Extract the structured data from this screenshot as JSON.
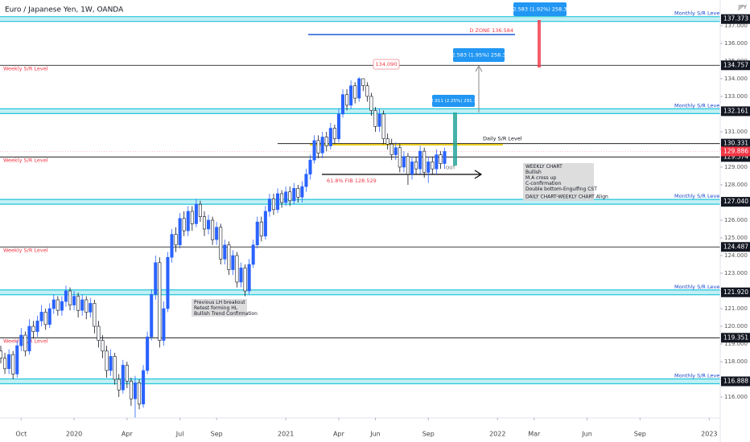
{
  "chart_data": {
    "type": "candlestick",
    "title": "Euro / Japanese Yen, 1W, OANDA",
    "currency": "JPY",
    "up_color": "#2962ff",
    "down_color": "#ffffff",
    "x": [
      -18,
      -17,
      -16,
      -15,
      -14,
      -13,
      -12,
      -11,
      -10,
      -9,
      -8,
      -7,
      -6,
      -5,
      -4,
      -3,
      -2,
      -1,
      0,
      1,
      2,
      3,
      4,
      5,
      6,
      7,
      8,
      9,
      10,
      11,
      12,
      13,
      14,
      15,
      16,
      17,
      18,
      19,
      20,
      21,
      22,
      23,
      24,
      25,
      26,
      27,
      28,
      29,
      30,
      31,
      32,
      33,
      34,
      35,
      36,
      37,
      38,
      39,
      40,
      41,
      42,
      43,
      44,
      45,
      46,
      47,
      48,
      49,
      50,
      51,
      52,
      53,
      54,
      55,
      56,
      57,
      58,
      59,
      60,
      61,
      62,
      63,
      64,
      65,
      66,
      67,
      68,
      69,
      70,
      71,
      72,
      73,
      74,
      75,
      76,
      77,
      78,
      79,
      80,
      81,
      82,
      83,
      84,
      85,
      86,
      87,
      88,
      89,
      90,
      91
    ],
    "candles": [
      [
        118.6,
        118.9,
        117.9,
        118.2
      ],
      [
        118.2,
        118.5,
        117.3,
        117.6
      ],
      [
        117.6,
        118.7,
        117.3,
        118.4
      ],
      [
        118.4,
        118.6,
        117.0,
        117.3
      ],
      [
        117.3,
        119.2,
        117.1,
        118.9
      ],
      [
        118.9,
        119.9,
        118.6,
        119.5
      ],
      [
        119.5,
        119.7,
        118.3,
        118.6
      ],
      [
        118.6,
        120.4,
        118.4,
        120.0
      ],
      [
        120.0,
        120.3,
        119.3,
        119.7
      ],
      [
        119.7,
        120.6,
        119.4,
        120.3
      ],
      [
        120.3,
        121.2,
        120.0,
        120.8
      ],
      [
        120.8,
        121.0,
        119.8,
        120.1
      ],
      [
        120.1,
        121.3,
        119.9,
        121.0
      ],
      [
        121.0,
        121.8,
        120.7,
        121.5
      ],
      [
        121.5,
        121.7,
        120.6,
        120.9
      ],
      [
        120.9,
        121.7,
        120.6,
        121.4
      ],
      [
        121.4,
        122.3,
        121.1,
        122.0
      ],
      [
        122.0,
        122.2,
        120.9,
        121.2
      ],
      [
        121.2,
        122.0,
        120.9,
        121.7
      ],
      [
        121.7,
        121.9,
        120.5,
        120.9
      ],
      [
        120.9,
        121.8,
        120.6,
        121.5
      ],
      [
        121.5,
        121.7,
        120.4,
        120.8
      ],
      [
        120.8,
        121.6,
        120.5,
        121.3
      ],
      [
        121.3,
        121.5,
        119.6,
        120.0
      ],
      [
        120.0,
        120.3,
        118.8,
        119.2
      ],
      [
        119.2,
        119.5,
        118.2,
        118.6
      ],
      [
        118.6,
        118.9,
        117.1,
        117.5
      ],
      [
        117.5,
        118.7,
        117.2,
        118.3
      ],
      [
        118.3,
        118.5,
        116.7,
        117.0
      ],
      [
        117.0,
        117.3,
        116.0,
        116.4
      ],
      [
        116.4,
        118.1,
        116.2,
        117.8
      ],
      [
        117.8,
        118.0,
        116.5,
        116.9
      ],
      [
        116.9,
        117.1,
        115.5,
        115.9
      ],
      [
        115.9,
        117.2,
        114.6,
        116.8
      ],
      [
        116.8,
        117.0,
        115.3,
        115.6
      ],
      [
        115.6,
        117.8,
        115.4,
        117.5
      ],
      [
        117.5,
        119.7,
        117.3,
        119.4
      ],
      [
        119.4,
        122.1,
        119.2,
        121.8
      ],
      [
        121.8,
        124.0,
        121.5,
        123.6
      ],
      [
        123.6,
        123.9,
        118.8,
        119.2
      ],
      [
        119.2,
        121.4,
        118.9,
        121.0
      ],
      [
        121.0,
        124.2,
        120.8,
        123.9
      ],
      [
        123.9,
        125.5,
        123.6,
        125.2
      ],
      [
        125.2,
        125.6,
        124.2,
        124.6
      ],
      [
        124.6,
        126.4,
        124.4,
        126.1
      ],
      [
        126.1,
        126.5,
        125.1,
        125.4
      ],
      [
        125.4,
        126.8,
        125.1,
        126.5
      ],
      [
        126.5,
        126.8,
        125.4,
        125.8
      ],
      [
        125.8,
        127.2,
        125.6,
        126.9
      ],
      [
        126.9,
        127.1,
        125.9,
        126.2
      ],
      [
        126.2,
        126.5,
        125.1,
        125.5
      ],
      [
        125.5,
        126.3,
        125.2,
        126.0
      ],
      [
        126.0,
        126.2,
        124.6,
        124.9
      ],
      [
        124.9,
        125.9,
        124.6,
        125.6
      ],
      [
        125.6,
        125.8,
        123.5,
        123.8
      ],
      [
        123.8,
        124.9,
        123.5,
        124.6
      ],
      [
        124.6,
        124.8,
        122.9,
        123.2
      ],
      [
        123.2,
        124.3,
        122.9,
        124.0
      ],
      [
        124.0,
        124.2,
        122.2,
        122.5
      ],
      [
        122.5,
        123.6,
        122.2,
        123.3
      ],
      [
        123.3,
        123.5,
        121.7,
        122.0
      ],
      [
        122.0,
        123.8,
        121.8,
        123.5
      ],
      [
        123.5,
        124.9,
        123.3,
        124.6
      ],
      [
        124.6,
        126.2,
        124.4,
        125.9
      ],
      [
        125.9,
        126.2,
        124.8,
        125.1
      ],
      [
        125.1,
        126.8,
        124.9,
        126.5
      ],
      [
        126.5,
        127.5,
        126.2,
        127.2
      ],
      [
        127.2,
        127.5,
        126.3,
        126.6
      ],
      [
        126.6,
        127.8,
        126.4,
        127.5
      ],
      [
        127.5,
        127.7,
        126.7,
        127.0
      ],
      [
        127.0,
        127.9,
        126.8,
        127.6
      ],
      [
        127.6,
        127.9,
        126.8,
        127.1
      ],
      [
        127.1,
        128.1,
        126.9,
        127.8
      ],
      [
        127.8,
        128.0,
        127.0,
        127.3
      ],
      [
        127.3,
        128.2,
        127.0,
        127.9
      ],
      [
        127.9,
        128.9,
        127.6,
        128.6
      ],
      [
        128.6,
        129.7,
        128.3,
        129.4
      ],
      [
        129.4,
        130.8,
        129.2,
        130.5
      ],
      [
        130.5,
        130.8,
        129.5,
        129.8
      ],
      [
        129.8,
        131.0,
        129.5,
        130.7
      ],
      [
        130.7,
        131.0,
        129.9,
        130.2
      ],
      [
        130.2,
        131.5,
        130.0,
        131.2
      ],
      [
        131.2,
        131.4,
        130.3,
        130.6
      ],
      [
        130.6,
        132.3,
        130.4,
        132.0
      ],
      [
        132.0,
        133.4,
        131.8,
        133.1
      ],
      [
        133.1,
        133.4,
        132.2,
        132.5
      ],
      [
        132.5,
        133.9,
        132.3,
        133.6
      ],
      [
        133.6,
        133.8,
        132.6,
        132.9
      ],
      [
        132.9,
        134.09,
        132.7,
        134.0
      ],
      [
        134.0,
        134.0,
        133.3,
        133.6
      ],
      [
        133.6,
        133.8,
        132.7,
        133.0
      ],
      [
        133.0,
        133.2,
        131.9,
        132.2
      ],
      [
        132.2,
        132.4,
        131.0,
        131.3
      ],
      [
        131.3,
        132.3,
        131.0,
        132.0
      ],
      [
        132.0,
        132.2,
        130.3,
        130.6
      ],
      [
        130.6,
        130.9,
        130.0,
        130.3
      ],
      [
        130.3,
        130.6,
        129.4,
        129.7
      ],
      [
        129.7,
        130.4,
        129.4,
        130.1
      ],
      [
        130.1,
        130.3,
        128.7,
        129.0
      ],
      [
        129.0,
        129.9,
        128.7,
        129.6
      ],
      [
        129.6,
        129.8,
        128.0,
        128.6
      ],
      [
        128.6,
        129.6,
        128.3,
        129.3
      ],
      [
        129.3,
        129.6,
        128.6,
        128.9
      ],
      [
        128.9,
        130.2,
        128.6,
        129.9
      ],
      [
        129.9,
        130.1,
        128.4,
        128.7
      ],
      [
        128.7,
        129.6,
        128.1,
        129.3
      ],
      [
        129.3,
        129.6,
        128.6,
        128.9
      ],
      [
        128.9,
        130.0,
        128.6,
        129.7
      ],
      [
        129.7,
        129.9,
        128.9,
        129.2
      ],
      [
        129.2,
        130.1,
        128.9,
        129.886
      ]
    ],
    "xlim": [
      -18.2,
      158.7
    ],
    "xticks": [
      {
        "value": -13,
        "label": "Oct"
      },
      {
        "value": 0,
        "label": "2020"
      },
      {
        "value": 13,
        "label": "Apr"
      },
      {
        "value": 26,
        "label": "Jul"
      },
      {
        "value": 35,
        "label": "Sep"
      },
      {
        "value": 52,
        "label": "2021"
      },
      {
        "value": 65,
        "label": "Apr"
      },
      {
        "value": 74,
        "label": "Jun"
      },
      {
        "value": 87,
        "label": "Sep"
      },
      {
        "value": 104,
        "label": "2022"
      },
      {
        "value": 113,
        "label": "Mar"
      },
      {
        "value": 126,
        "label": "Jun"
      },
      {
        "value": 139,
        "label": "Sep"
      },
      {
        "value": 156,
        "label": "2023"
      }
    ],
    "ylim": [
      114.82,
      138.45
    ],
    "yticks": [
      {
        "value": 116,
        "label": "116.000"
      },
      {
        "value": 117,
        "label": "117.000"
      },
      {
        "value": 118,
        "label": "118.000"
      },
      {
        "value": 119,
        "label": "119.000"
      },
      {
        "value": 120,
        "label": "120.000"
      },
      {
        "value": 121,
        "label": "121.000"
      },
      {
        "value": 122,
        "label": "122.000"
      },
      {
        "value": 123,
        "label": "123.000"
      },
      {
        "value": 124,
        "label": "124.000"
      },
      {
        "value": 125,
        "label": "125.000"
      },
      {
        "value": 126,
        "label": "126.000"
      },
      {
        "value": 127,
        "label": "127.000"
      },
      {
        "value": 128,
        "label": "128.000"
      },
      {
        "value": 129,
        "label": "129.000"
      },
      {
        "value": 130,
        "label": "130.000"
      },
      {
        "value": 131,
        "label": "131.000"
      },
      {
        "value": 132,
        "label": "132.000"
      },
      {
        "value": 133,
        "label": "133.000"
      },
      {
        "value": 134,
        "label": "134.000"
      },
      {
        "value": 135,
        "label": "135.000"
      },
      {
        "value": 136,
        "label": "136.000"
      },
      {
        "value": 137,
        "label": "137.000"
      }
    ],
    "grid": false,
    "levels": [
      {
        "value": 137.373,
        "label": "137.373",
        "kind": "monthly",
        "text": "Monthly  S/R Level"
      },
      {
        "value": 134.757,
        "label": "134.757",
        "kind": "weekly",
        "text": "Weekly S/R Level"
      },
      {
        "value": 132.161,
        "label": "132.161",
        "kind": "monthly",
        "text": "Monthly  S/R Level"
      },
      {
        "value": 130.331,
        "label": "130.331",
        "kind": "daily",
        "text": "Daily S/R Level"
      },
      {
        "value": 129.574,
        "label": "129.574",
        "kind": "weekly",
        "text": "Weekly S/R Level"
      },
      {
        "value": 127.04,
        "label": "127.040",
        "kind": "monthly",
        "text": "Monthly  S/R Level"
      },
      {
        "value": 124.487,
        "label": "124.487",
        "kind": "weekly",
        "text": "Weekly S/R Level"
      },
      {
        "value": 121.92,
        "label": "121.920",
        "kind": "monthly",
        "text": "Monthly  S/R Level"
      },
      {
        "value": 119.351,
        "label": "119.351",
        "kind": "weekly",
        "text": "Weekly S/R Level"
      },
      {
        "value": 116.888,
        "label": "116.888",
        "kind": "monthly",
        "text": "Monthly  S/R Level"
      }
    ],
    "current_price": {
      "value": 129.886,
      "label": "129.886",
      "color": "#f23645"
    },
    "annotations": {
      "measure_top": "2.583 (1.92%) 258.3",
      "measure_mid": "2.583 (1.95%) 258.3",
      "measure_low": "2.911 (2.25%) 291.1",
      "d_zone": "D ZONE 136.584",
      "high_label": "134.090",
      "fib": "61.8% FIB 128.529",
      "out": "OUT",
      "note_weekly": [
        "WEEKLY CHART",
        "Bullish",
        "M.A cross up",
        "C-confirmation",
        "Double bottom-Engulfing CST"
      ],
      "note_align": "DAILY CHART-WEEKLY CHART Align",
      "note_breakout": [
        "Previous LH breakout",
        "Retest forming HL",
        "Bullish Trend Confirmation"
      ]
    }
  }
}
